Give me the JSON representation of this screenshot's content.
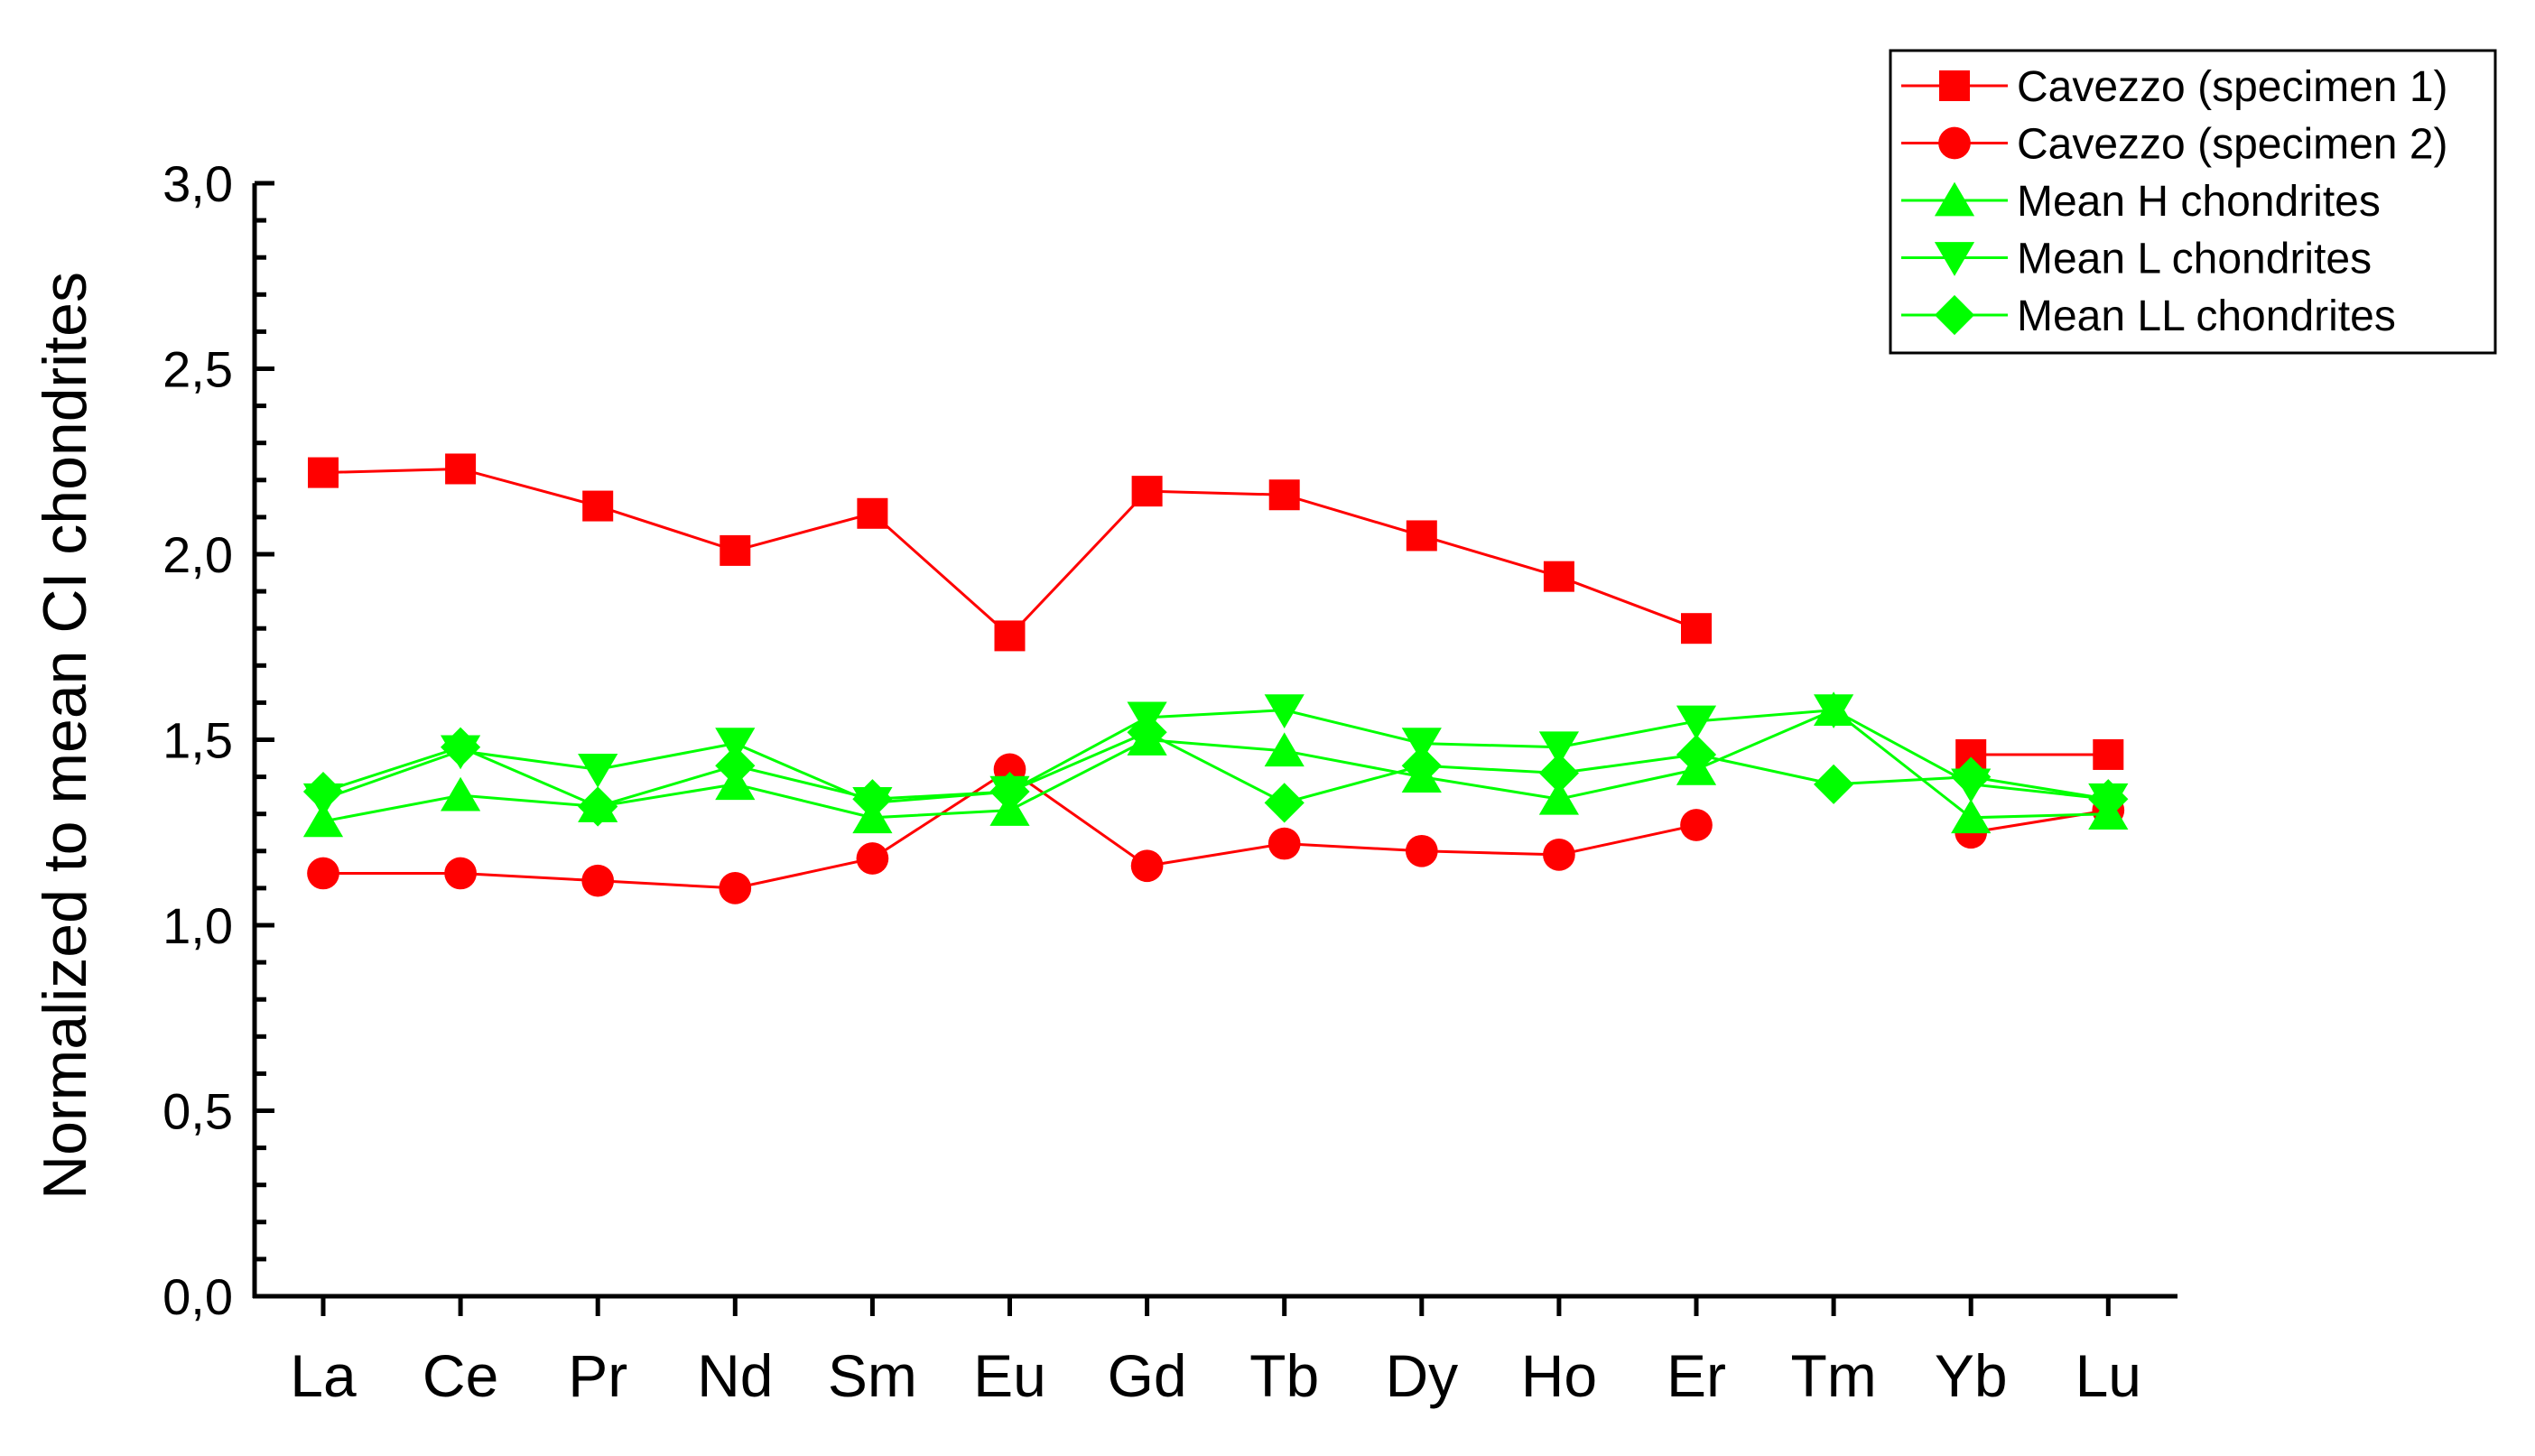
{
  "chart_data": {
    "type": "line",
    "title": "",
    "xlabel": "",
    "ylabel": "Normalized to mean CI chondrites",
    "categories": [
      "La",
      "Ce",
      "Pr",
      "Nd",
      "Sm",
      "Eu",
      "Gd",
      "Tb",
      "Dy",
      "Ho",
      "Er",
      "Tm",
      "Yb",
      "Lu"
    ],
    "ylim": [
      0,
      3.0
    ],
    "yticks": [
      0.0,
      0.5,
      1.0,
      1.5,
      2.0,
      2.5,
      3.0
    ],
    "ytick_labels": [
      "0,0",
      "0,5",
      "1,0",
      "1,5",
      "2,0",
      "2,5",
      "3,0"
    ],
    "grid": false,
    "legend_position": "top-right",
    "series": [
      {
        "name": "Cavezzo (specimen 1)",
        "marker": "square",
        "color": "#ff0000",
        "values": [
          2.22,
          2.23,
          2.13,
          2.01,
          2.11,
          1.78,
          2.17,
          2.16,
          2.05,
          1.94,
          1.8,
          null,
          1.46,
          1.46
        ]
      },
      {
        "name": "Cavezzo (specimen 2)",
        "marker": "circle",
        "color": "#ff0000",
        "values": [
          1.14,
          1.14,
          1.12,
          1.1,
          1.18,
          1.42,
          1.16,
          1.22,
          1.2,
          1.19,
          1.27,
          null,
          1.25,
          1.31
        ]
      },
      {
        "name": "Mean H chondrites",
        "marker": "triangle-up",
        "color": "#00ff00",
        "values": [
          1.28,
          1.35,
          1.32,
          1.38,
          1.29,
          1.31,
          1.5,
          1.47,
          1.4,
          1.34,
          1.42,
          1.58,
          1.29,
          1.3
        ]
      },
      {
        "name": "Mean L chondrites",
        "marker": "triangle-down",
        "color": "#00ff00",
        "values": [
          1.34,
          1.47,
          1.42,
          1.49,
          1.33,
          1.36,
          1.56,
          1.58,
          1.49,
          1.48,
          1.55,
          1.58,
          1.38,
          1.34
        ]
      },
      {
        "name": "Mean LL chondrites",
        "marker": "diamond",
        "color": "#00ff00",
        "values": [
          1.36,
          1.48,
          1.32,
          1.43,
          1.34,
          1.36,
          1.52,
          1.33,
          1.43,
          1.41,
          1.46,
          1.38,
          1.4,
          1.34
        ]
      }
    ]
  }
}
